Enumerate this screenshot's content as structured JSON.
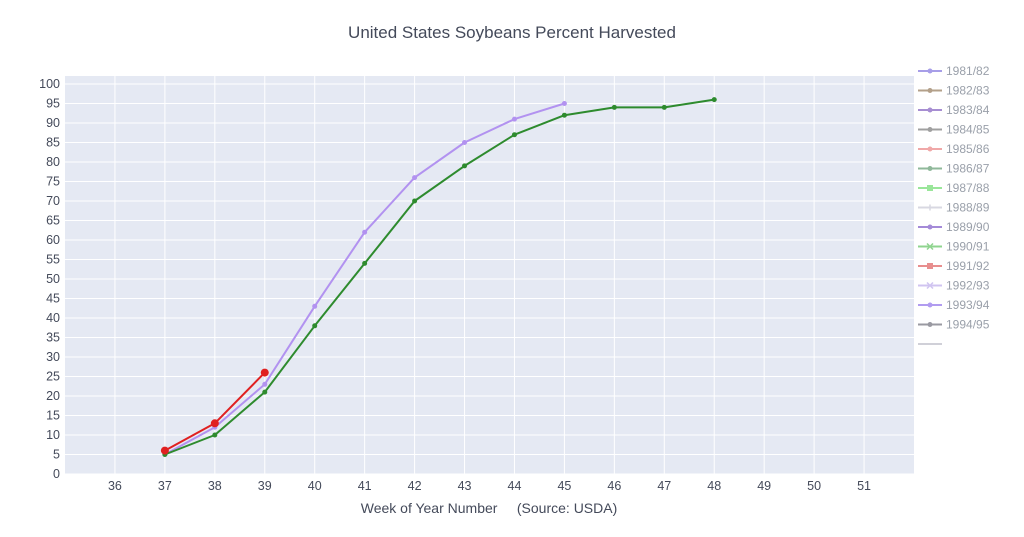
{
  "chart_data": {
    "type": "line",
    "title": "United States Soybeans Percent Harvested",
    "xlabel": "Week of Year Number     (Source: USDA)",
    "ylabel": "",
    "xlim": [
      35,
      52
    ],
    "ylim": [
      0,
      100
    ],
    "x_ticks": [
      "36",
      "37",
      "38",
      "39",
      "40",
      "41",
      "42",
      "43",
      "44",
      "45",
      "46",
      "47",
      "48",
      "49",
      "50",
      "51"
    ],
    "y_ticks": [
      "0",
      "5",
      "10",
      "15",
      "20",
      "25",
      "30",
      "35",
      "40",
      "45",
      "50",
      "55",
      "60",
      "65",
      "70",
      "75",
      "80",
      "85",
      "90",
      "95",
      "100"
    ],
    "grid": true,
    "plot_background": "#e5e9f3",
    "legend_position": "right",
    "legend": [
      {
        "name": "1981/82",
        "color": "#a79ee8",
        "symbol": "circle"
      },
      {
        "name": "1982/83",
        "color": "#b3a08a",
        "symbol": "circle"
      },
      {
        "name": "1983/84",
        "color": "#a78ed2",
        "symbol": "circle"
      },
      {
        "name": "1984/85",
        "color": "#a0a0a0",
        "symbol": "circle"
      },
      {
        "name": "1985/86",
        "color": "#f0a8a8",
        "symbol": "circle"
      },
      {
        "name": "1986/87",
        "color": "#8fb89a",
        "symbol": "circle"
      },
      {
        "name": "1987/88",
        "color": "#9ae69a",
        "symbol": "square"
      },
      {
        "name": "1988/89",
        "color": "#d8d8e2",
        "symbol": "cross"
      },
      {
        "name": "1989/90",
        "color": "#a48ad8",
        "symbol": "circle"
      },
      {
        "name": "1990/91",
        "color": "#8fd48f",
        "symbol": "x"
      },
      {
        "name": "1991/92",
        "color": "#e88e8e",
        "symbol": "square"
      },
      {
        "name": "1992/93",
        "color": "#d0c4f0",
        "symbol": "x"
      },
      {
        "name": "1993/94",
        "color": "#b19cf0",
        "symbol": "circle"
      },
      {
        "name": "1994/95",
        "color": "#9a9aa2",
        "symbol": "circle"
      }
    ],
    "series": [
      {
        "color": "#b292f0",
        "marker_size": 2.5,
        "x": [
          37,
          38,
          39,
          40,
          41,
          42,
          43,
          44,
          45
        ],
        "y": [
          5,
          12,
          23,
          43,
          62,
          76,
          85,
          91,
          95
        ]
      },
      {
        "color": "#2e8b2e",
        "marker_size": 2.5,
        "x": [
          37,
          38,
          39,
          40,
          41,
          42,
          43,
          44,
          45,
          46,
          47,
          48
        ],
        "y": [
          5,
          10,
          21,
          38,
          54,
          70,
          79,
          87,
          92,
          94,
          94,
          96
        ]
      },
      {
        "color": "#e02020",
        "marker_size": 4,
        "x": [
          37,
          38,
          39
        ],
        "y": [
          6,
          13,
          26
        ]
      }
    ]
  }
}
